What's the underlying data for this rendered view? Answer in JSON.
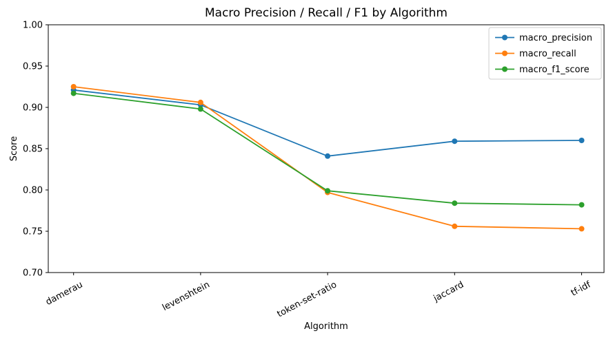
{
  "chart_data": {
    "type": "line",
    "title": "Macro Precision / Recall / F1 by Algorithm",
    "xlabel": "Algorithm",
    "ylabel": "Score",
    "categories": [
      "damerau",
      "levenshtein",
      "token-set-ratio",
      "jaccard",
      "tf-idf"
    ],
    "series": [
      {
        "name": "macro_precision",
        "color": "#1f77b4",
        "values": [
          0.921,
          0.903,
          0.841,
          0.859,
          0.86
        ]
      },
      {
        "name": "macro_recall",
        "color": "#ff7f0e",
        "values": [
          0.925,
          0.906,
          0.797,
          0.756,
          0.753
        ]
      },
      {
        "name": "macro_f1_score",
        "color": "#2ca02c",
        "values": [
          0.917,
          0.898,
          0.799,
          0.784,
          0.782
        ]
      }
    ],
    "ylim": [
      0.7,
      1.0
    ],
    "yticks": [
      0.7,
      0.75,
      0.8,
      0.85,
      0.9,
      0.95,
      1.0
    ],
    "grid": false,
    "legend_position": "upper right",
    "marker": "o",
    "spine_color": "#000000",
    "legend_edge_color": "#cccccc"
  }
}
